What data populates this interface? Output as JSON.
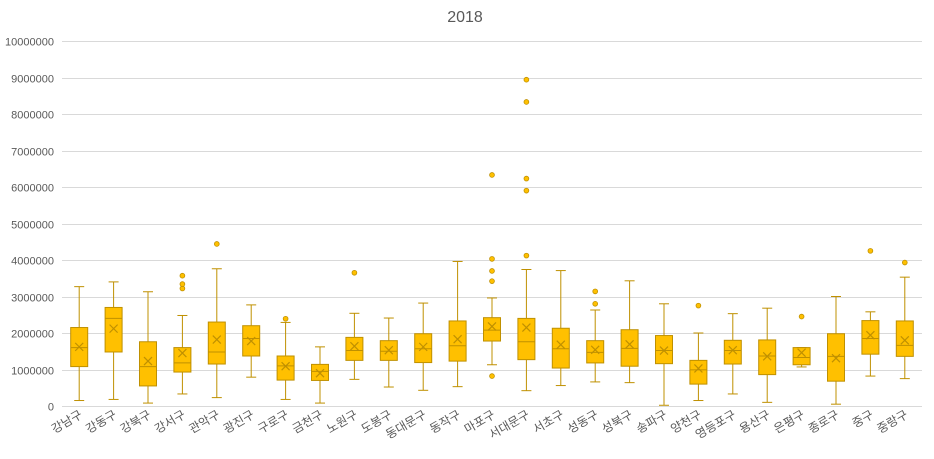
{
  "chart_data": {
    "type": "box",
    "title": "2018",
    "ylim": [
      0,
      10000000
    ],
    "yticks": [
      "0",
      "1000000",
      "2000000",
      "3000000",
      "4000000",
      "5000000",
      "6000000",
      "7000000",
      "8000000",
      "9000000",
      "10000000"
    ],
    "grid": true,
    "colors": {
      "box_fill": "#FFC000",
      "box_stroke": "#BF9000",
      "text": "#595959",
      "grid": "#D9D9D9"
    },
    "categories": [
      {
        "name": "강남구",
        "min": 150000,
        "q1": 1080000,
        "median": 1600000,
        "q3": 2150000,
        "max": 3270000,
        "mean": 1620000,
        "outliers": []
      },
      {
        "name": "강동구",
        "min": 180000,
        "q1": 1480000,
        "median": 2400000,
        "q3": 2700000,
        "max": 3400000,
        "mean": 2120000,
        "outliers": []
      },
      {
        "name": "강북구",
        "min": 80000,
        "q1": 550000,
        "median": 1080000,
        "q3": 1760000,
        "max": 3130000,
        "mean": 1230000,
        "outliers": []
      },
      {
        "name": "강서구",
        "min": 330000,
        "q1": 930000,
        "median": 1180000,
        "q3": 1600000,
        "max": 2480000,
        "mean": 1450000,
        "outliers": [
          3220000,
          3340000,
          3570000
        ]
      },
      {
        "name": "관악구",
        "min": 230000,
        "q1": 1150000,
        "median": 1480000,
        "q3": 2300000,
        "max": 3760000,
        "mean": 1820000,
        "outliers": [
          4440000
        ]
      },
      {
        "name": "광진구",
        "min": 790000,
        "q1": 1370000,
        "median": 1850000,
        "q3": 2200000,
        "max": 2770000,
        "mean": 1780000,
        "outliers": []
      },
      {
        "name": "구로구",
        "min": 180000,
        "q1": 710000,
        "median": 1100000,
        "q3": 1370000,
        "max": 2290000,
        "mean": 1090000,
        "outliers": [
          2390000
        ]
      },
      {
        "name": "금천구",
        "min": 80000,
        "q1": 700000,
        "median": 950000,
        "q3": 1140000,
        "max": 1620000,
        "mean": 900000,
        "outliers": []
      },
      {
        "name": "노원구",
        "min": 730000,
        "q1": 1250000,
        "median": 1520000,
        "q3": 1880000,
        "max": 2540000,
        "mean": 1640000,
        "outliers": [
          3650000
        ]
      },
      {
        "name": "도봉구",
        "min": 520000,
        "q1": 1250000,
        "median": 1500000,
        "q3": 1790000,
        "max": 2410000,
        "mean": 1530000,
        "outliers": []
      },
      {
        "name": "동대문구",
        "min": 430000,
        "q1": 1190000,
        "median": 1570000,
        "q3": 1980000,
        "max": 2820000,
        "mean": 1620000,
        "outliers": []
      },
      {
        "name": "동작구",
        "min": 530000,
        "q1": 1230000,
        "median": 1650000,
        "q3": 2330000,
        "max": 3960000,
        "mean": 1830000,
        "outliers": []
      },
      {
        "name": "마포구",
        "min": 1130000,
        "q1": 1780000,
        "median": 2080000,
        "q3": 2420000,
        "max": 2960000,
        "mean": 2180000,
        "outliers": [
          820000,
          3420000,
          3700000,
          4030000,
          6330000
        ]
      },
      {
        "name": "서대문구",
        "min": 420000,
        "q1": 1270000,
        "median": 1760000,
        "q3": 2400000,
        "max": 3740000,
        "mean": 2150000,
        "outliers": [
          4120000,
          5900000,
          6230000,
          8330000,
          8940000
        ]
      },
      {
        "name": "서초구",
        "min": 560000,
        "q1": 1040000,
        "median": 1570000,
        "q3": 2130000,
        "max": 3710000,
        "mean": 1680000,
        "outliers": []
      },
      {
        "name": "성동구",
        "min": 660000,
        "q1": 1180000,
        "median": 1470000,
        "q3": 1790000,
        "max": 2630000,
        "mean": 1540000,
        "outliers": [
          2800000,
          3140000
        ]
      },
      {
        "name": "성북구",
        "min": 640000,
        "q1": 1090000,
        "median": 1580000,
        "q3": 2090000,
        "max": 3430000,
        "mean": 1690000,
        "outliers": []
      },
      {
        "name": "송파구",
        "min": 20000,
        "q1": 1160000,
        "median": 1520000,
        "q3": 1930000,
        "max": 2800000,
        "mean": 1520000,
        "outliers": []
      },
      {
        "name": "양천구",
        "min": 150000,
        "q1": 600000,
        "median": 990000,
        "q3": 1250000,
        "max": 2000000,
        "mean": 1030000,
        "outliers": [
          2750000
        ]
      },
      {
        "name": "영등포구",
        "min": 330000,
        "q1": 1150000,
        "median": 1520000,
        "q3": 1800000,
        "max": 2530000,
        "mean": 1530000,
        "outliers": []
      },
      {
        "name": "용산구",
        "min": 100000,
        "q1": 860000,
        "median": 1370000,
        "q3": 1810000,
        "max": 2680000,
        "mean": 1360000,
        "outliers": []
      },
      {
        "name": "은평구",
        "min": 1070000,
        "q1": 1130000,
        "median": 1330000,
        "q3": 1600000,
        "max": 1600000,
        "mean": 1460000,
        "outliers": [
          2450000
        ]
      },
      {
        "name": "종로구",
        "min": 50000,
        "q1": 680000,
        "median": 1360000,
        "q3": 1980000,
        "max": 3000000,
        "mean": 1310000,
        "outliers": []
      },
      {
        "name": "중구",
        "min": 820000,
        "q1": 1420000,
        "median": 1850000,
        "q3": 2340000,
        "max": 2580000,
        "mean": 1940000,
        "outliers": [
          4250000
        ]
      },
      {
        "name": "중랑구",
        "min": 750000,
        "q1": 1360000,
        "median": 1660000,
        "q3": 2330000,
        "max": 3530000,
        "mean": 1800000,
        "outliers": [
          3930000
        ]
      }
    ]
  }
}
